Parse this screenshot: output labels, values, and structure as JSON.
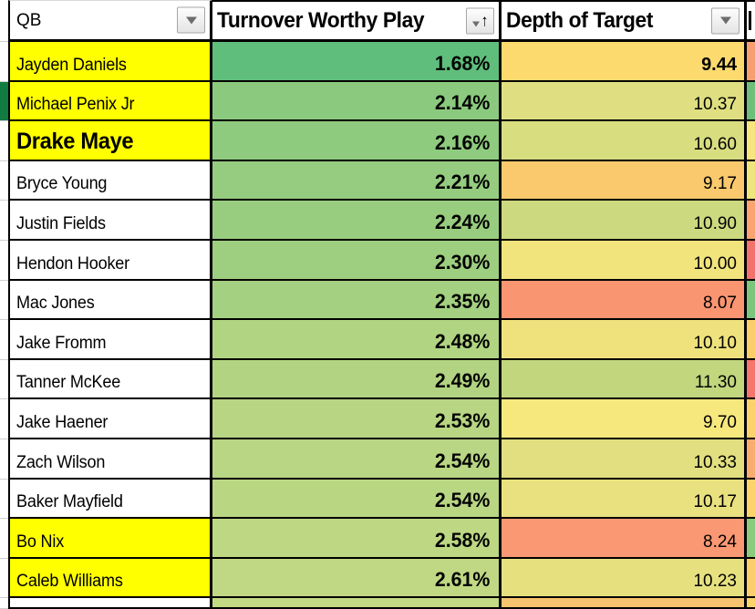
{
  "header": {
    "qb_label": "QB",
    "twp_label": "Turnover Worthy Play",
    "depth_label": "Depth of Target",
    "sort_arrow_glyph": "↑"
  },
  "icons": {
    "qb_header": "filter-dropdown-icon",
    "twp_header": "sort-ascending-filter-icon",
    "depth_header": "filter-dropdown-icon"
  },
  "colors": {
    "highlight_yellow": "#ffff00",
    "selection_green": "#107c41",
    "grid_black": "#000000",
    "gutter_line": "#cfcfcf",
    "white": "#ffffff"
  },
  "rows": [
    {
      "qb": "Jayden Daniels",
      "highlighted": true,
      "name_bold": false,
      "gutter_selected": false,
      "twp": "1.68%",
      "twp_color": "#5fbe7c",
      "depth": "9.44",
      "depth_bold": true,
      "depth_color": "#fdda6e",
      "next_color": "#f89f72"
    },
    {
      "qb": "Michael Penix Jr",
      "highlighted": true,
      "name_bold": false,
      "gutter_selected": true,
      "twp": "2.14%",
      "twp_color": "#8bca7e",
      "depth": "10.37",
      "depth_bold": false,
      "depth_color": "#dfdf81",
      "next_color": "#6dbf7b"
    },
    {
      "qb": "Drake Maye",
      "highlighted": true,
      "name_bold": true,
      "gutter_selected": false,
      "twp": "2.16%",
      "twp_color": "#8ecb7e",
      "depth": "10.60",
      "depth_bold": false,
      "depth_color": "#d8dd80",
      "next_color": "#f6e67d"
    },
    {
      "qb": "Bryce Young",
      "highlighted": false,
      "name_bold": false,
      "gutter_selected": false,
      "twp": "2.21%",
      "twp_color": "#95cc7f",
      "depth": "9.17",
      "depth_bold": false,
      "depth_color": "#fbc96d",
      "next_color": "#efe57d"
    },
    {
      "qb": "Justin Fields",
      "highlighted": false,
      "name_bold": false,
      "gutter_selected": false,
      "twp": "2.24%",
      "twp_color": "#98cd7f",
      "depth": "10.90",
      "depth_bold": false,
      "depth_color": "#cdd97e",
      "next_color": "#f9a471"
    },
    {
      "qb": "Hendon Hooker",
      "highlighted": false,
      "name_bold": false,
      "gutter_selected": false,
      "twp": "2.30%",
      "twp_color": "#9ece80",
      "depth": "10.00",
      "depth_bold": false,
      "depth_color": "#f2e47d",
      "next_color": "#f4726c"
    },
    {
      "qb": "Mac Jones",
      "highlighted": false,
      "name_bold": false,
      "gutter_selected": false,
      "twp": "2.35%",
      "twp_color": "#a4d081",
      "depth": "8.07",
      "depth_bold": false,
      "depth_color": "#fa9572",
      "next_color": "#7dc47c"
    },
    {
      "qb": "Jake Fromm",
      "highlighted": false,
      "name_bold": false,
      "gutter_selected": false,
      "twp": "2.48%",
      "twp_color": "#b1d482",
      "depth": "10.10",
      "depth_bold": false,
      "depth_color": "#efe27c",
      "next_color": "#fbce6c"
    },
    {
      "qb": "Tanner McKee",
      "highlighted": false,
      "name_bold": false,
      "gutter_selected": false,
      "twp": "2.49%",
      "twp_color": "#b2d482",
      "depth": "11.30",
      "depth_bold": false,
      "depth_color": "#c2d67d",
      "next_color": "#f4766d"
    },
    {
      "qb": "Jake Haener",
      "highlighted": false,
      "name_bold": false,
      "gutter_selected": false,
      "twp": "2.53%",
      "twp_color": "#b7d583",
      "depth": "9.70",
      "depth_bold": false,
      "depth_color": "#f7e87e",
      "next_color": "#fbd26c"
    },
    {
      "qb": "Zach Wilson",
      "highlighted": false,
      "name_bold": false,
      "gutter_selected": false,
      "twp": "2.54%",
      "twp_color": "#b8d683",
      "depth": "10.33",
      "depth_bold": false,
      "depth_color": "#e2df80",
      "next_color": "#f9ae70"
    },
    {
      "qb": "Baker Mayfield",
      "highlighted": false,
      "name_bold": false,
      "gutter_selected": false,
      "twp": "2.54%",
      "twp_color": "#b9d683",
      "depth": "10.17",
      "depth_bold": false,
      "depth_color": "#e9e17f",
      "next_color": "#fbd46c"
    },
    {
      "qb": "Bo Nix",
      "highlighted": true,
      "name_bold": false,
      "gutter_selected": false,
      "twp": "2.58%",
      "twp_color": "#bdd783",
      "depth": "8.24",
      "depth_bold": false,
      "depth_color": "#f99873",
      "next_color": "#8cca7e"
    },
    {
      "qb": "Caleb Williams",
      "highlighted": true,
      "name_bold": false,
      "gutter_selected": false,
      "twp": "2.61%",
      "twp_color": "#c0d883",
      "depth": "10.23",
      "depth_bold": false,
      "depth_color": "#e6e07f",
      "next_color": "#fbce6c"
    }
  ],
  "partial_row": {
    "twp_color": "#c3d983",
    "depth_color": "#f6c46f",
    "next_color": "#fbd46c"
  }
}
